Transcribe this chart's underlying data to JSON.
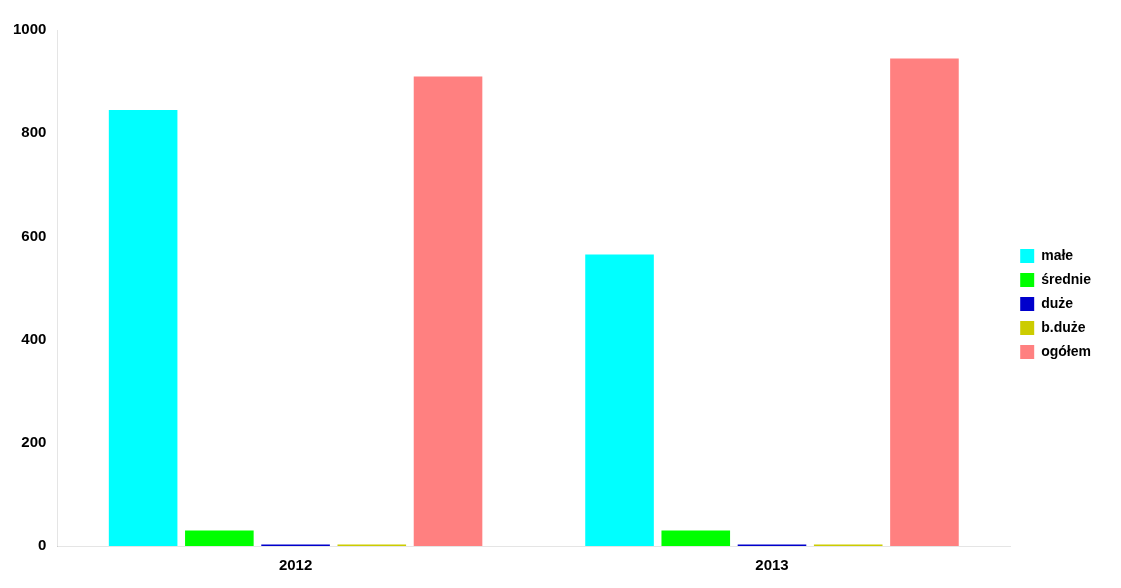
{
  "chart_data": {
    "type": "bar",
    "categories": [
      "2012",
      "2013"
    ],
    "series": [
      {
        "name": "małe",
        "color": "#00ffff",
        "values": [
          845,
          565
        ]
      },
      {
        "name": "średnie",
        "color": "#00ff00",
        "values": [
          30,
          30
        ]
      },
      {
        "name": "duże",
        "color": "#0000cc",
        "values": [
          3,
          3
        ]
      },
      {
        "name": "b.duże",
        "color": "#cccc00",
        "values": [
          3,
          3
        ]
      },
      {
        "name": "ogółem",
        "color": "#ff8080",
        "values": [
          910,
          945
        ]
      }
    ],
    "ylim": [
      0,
      1000
    ],
    "yticks": [
      0,
      200,
      400,
      600,
      800,
      1000
    ],
    "grid": false,
    "legend": "right"
  }
}
